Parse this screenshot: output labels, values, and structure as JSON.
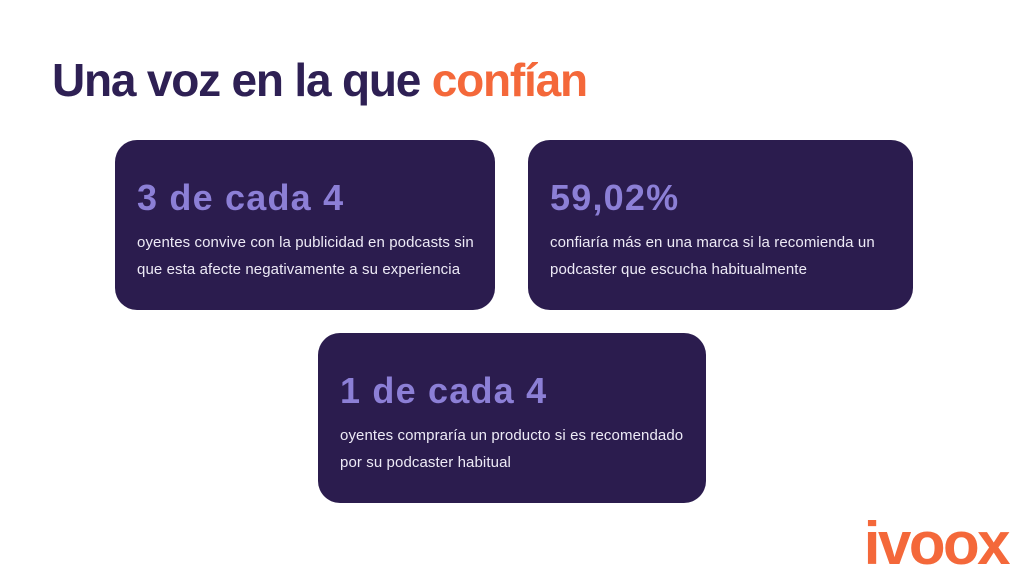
{
  "slide": {
    "title": {
      "prefix": "Una voz en la que ",
      "highlight": "confían"
    },
    "cards": [
      {
        "stat": "3 de cada 4",
        "description": "oyentes convive con la publicidad en podcasts sin que esta afecte negativamente a su experiencia"
      },
      {
        "stat": "59,02%",
        "description": "confiaría más en una marca si la recomienda un podcaster que escucha habitualmente"
      },
      {
        "stat": "1 de cada 4",
        "description": "oyentes compraría un producto si es recomendado por su podcaster habitual"
      }
    ],
    "logo": "ivoox",
    "colors": {
      "background": "#FFFFFF",
      "title": "#2E2054",
      "accent_orange": "#F4683A",
      "card_background": "#2B1C4E",
      "stat_text": "#8C7FD6",
      "card_body_text": "#EDEAF6"
    }
  }
}
